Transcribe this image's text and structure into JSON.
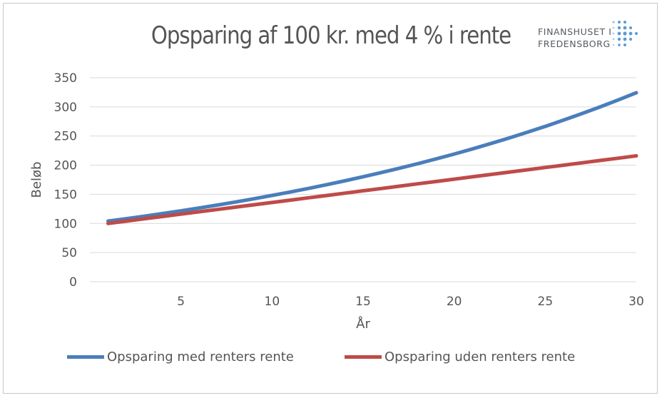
{
  "brand": {
    "name_line1": "FINANSHUSET I",
    "name_line2": "FREDENSBORG"
  },
  "chart_data": {
    "type": "line",
    "title": "Opsparing af 100 kr. med 4 % i rente",
    "xlabel": "År",
    "ylabel": "Beløb",
    "xlim": [
      0,
      30
    ],
    "ylim": [
      0,
      350
    ],
    "x_ticks": [
      5,
      10,
      15,
      20,
      25,
      30
    ],
    "y_ticks": [
      0,
      50,
      100,
      150,
      200,
      250,
      300,
      350
    ],
    "grid": true,
    "legend_position": "bottom",
    "x": [
      1,
      2,
      3,
      4,
      5,
      6,
      7,
      8,
      9,
      10,
      11,
      12,
      13,
      14,
      15,
      16,
      17,
      18,
      19,
      20,
      21,
      22,
      23,
      24,
      25,
      26,
      27,
      28,
      29,
      30
    ],
    "series": [
      {
        "name": "Opsparing med renters rente",
        "color": "#4a7ebb",
        "values": [
          104,
          108.16,
          112.49,
          116.99,
          121.67,
          126.53,
          131.59,
          136.86,
          142.33,
          148.02,
          153.95,
          160.1,
          166.51,
          173.17,
          180.09,
          187.3,
          194.79,
          202.58,
          210.68,
          219.11,
          227.88,
          236.99,
          246.47,
          256.33,
          266.58,
          277.25,
          288.34,
          299.87,
          311.87,
          324.34
        ]
      },
      {
        "name": "Opsparing uden renters rente",
        "color": "#be4b48",
        "values": [
          100,
          104,
          108,
          112,
          116,
          120,
          124,
          128,
          132,
          136,
          140,
          144,
          148,
          152,
          156,
          160,
          164,
          168,
          172,
          176,
          180,
          184,
          188,
          192,
          196,
          200,
          204,
          208,
          212,
          216
        ]
      }
    ]
  }
}
